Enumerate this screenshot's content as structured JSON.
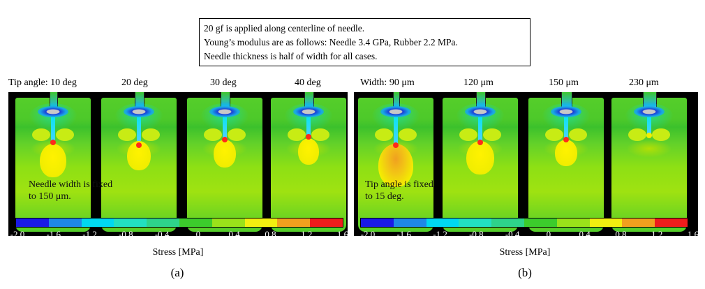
{
  "note": {
    "lines": [
      "20 gf is applied along centerline of needle.",
      "Young’s modulus are as follows: Needle 3.4 GPa, Rubber 2.2 MPa.",
      "Needle thickness is half of width for all cases."
    ]
  },
  "panel_a": {
    "headers": [
      "Tip angle: 10 deg",
      "20 deg",
      "30 deg",
      "40 deg"
    ],
    "caption_line1": "Needle width is fixed",
    "caption_line2": "to 150 μm.",
    "tick_labels": [
      "-2.0",
      "-1.6",
      "-1.2",
      "-0.8",
      "-0.4",
      "0",
      "0.4",
      "0.8",
      "1.2",
      "1.6"
    ],
    "axis_label": "Stress [MPa]",
    "label": "(a)"
  },
  "panel_b": {
    "headers": [
      "Width: 90 μm",
      "120 μm",
      "150 μm",
      "230 μm"
    ],
    "caption_line1": "Tip angle is fixed",
    "caption_line2": "to 15 deg.",
    "tick_labels": [
      "-2.0",
      "-1.6",
      "-1.2",
      "-0.8",
      "-0.4",
      "0",
      "0.4",
      "0.8",
      "1.2",
      "1.6"
    ],
    "axis_label": "Stress [MPa]",
    "label": "(b)"
  },
  "colorbar_colors": [
    "#1a1ae6",
    "#1e88e6",
    "#00d8f0",
    "#22e0c0",
    "#2ed38a",
    "#3ccc2c",
    "#9ae21a",
    "#f2ef10",
    "#f0a01e",
    "#ee1c1c"
  ]
}
